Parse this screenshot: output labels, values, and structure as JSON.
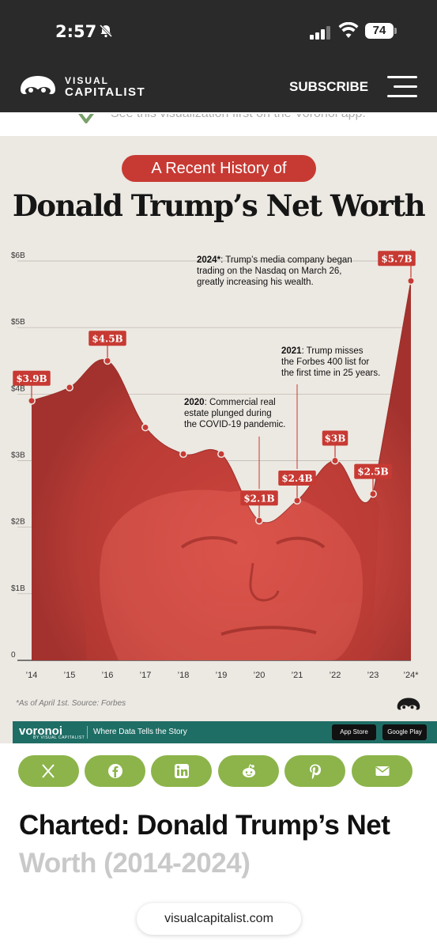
{
  "status_bar": {
    "time": "2:57",
    "battery": "74",
    "icons": [
      "bell-slash-icon",
      "cellular-signal-icon",
      "wifi-icon",
      "battery-icon"
    ]
  },
  "header": {
    "logo_line1": "VISUAL",
    "logo_line2": "CAPITALIST",
    "subscribe_label": "SUBSCRIBE",
    "menu_icon": "hamburger-menu-icon",
    "background": "#2a2a2a"
  },
  "ghost_banner": {
    "text": "See this visualization first on the Voronoi app."
  },
  "infographic": {
    "pill_label": "A Recent History of",
    "headline": "Donald Trump’s Net Worth",
    "footnote": "*As of April 1st. Source: Forbes",
    "accent": "#c73a33",
    "voronoi": {
      "brand": "voronoi",
      "by": "BY VISUAL CAPITALIST",
      "tagline": "Where Data Tells the Story",
      "app_store": "App Store",
      "google_play": "Google Play"
    }
  },
  "chart_data": {
    "type": "area",
    "title": "Donald Trump’s Net Worth",
    "x": [
      "’14",
      "’15",
      "’16",
      "’17",
      "’18",
      "’19",
      "’20",
      "’21",
      "’22",
      "’23",
      "’24*"
    ],
    "values": [
      3.9,
      4.1,
      4.5,
      3.5,
      3.1,
      3.1,
      2.1,
      2.4,
      3.0,
      2.5,
      5.7
    ],
    "unit": "$B",
    "y_ticks": [
      "0",
      "$1B",
      "$2B",
      "$3B",
      "$4B",
      "$5B",
      "$6B"
    ],
    "ylim": [
      0,
      6
    ],
    "grid": true,
    "data_labels": [
      {
        "x": "’14",
        "label": "$3.9B"
      },
      {
        "x": "’16",
        "label": "$4.5B"
      },
      {
        "x": "’20",
        "label": "$2.1B"
      },
      {
        "x": "’21",
        "label": "$2.4B"
      },
      {
        "x": "’22",
        "label": "$3B"
      },
      {
        "x": "’23",
        "label": "$2.5B"
      },
      {
        "x": "’24*",
        "label": "$5.7B"
      }
    ],
    "annotations": [
      {
        "x": "’24*",
        "bold": "2024*",
        "text": ": Trump’s media company began",
        "line2": "trading on the Nasdaq on March 26,",
        "line3": "greatly increasing his wealth."
      },
      {
        "x": "’21",
        "bold": "2021",
        "text": ": Trump misses",
        "line2": "the Forbes 400 list for",
        "line3": "the first time in 25 years."
      },
      {
        "x": "’20",
        "bold": "2020",
        "text": ": Commercial real",
        "line2": "estate plunged during",
        "line3": "the COVID-19 pandemic."
      }
    ],
    "series_color": "#c0413a"
  },
  "share_buttons": [
    {
      "name": "x-share-button",
      "icon": "x-icon"
    },
    {
      "name": "facebook-share-button",
      "icon": "facebook-icon"
    },
    {
      "name": "linkedin-share-button",
      "icon": "linkedin-icon"
    },
    {
      "name": "reddit-share-button",
      "icon": "reddit-icon"
    },
    {
      "name": "pinterest-share-button",
      "icon": "pinterest-icon"
    },
    {
      "name": "email-share-button",
      "icon": "email-icon"
    }
  ],
  "article": {
    "title_line1": "Charted: Donald Trump’s Net",
    "title_line2": "Worth (2014-2024)"
  },
  "url_bar": {
    "url": "visualcapitalist.com"
  }
}
